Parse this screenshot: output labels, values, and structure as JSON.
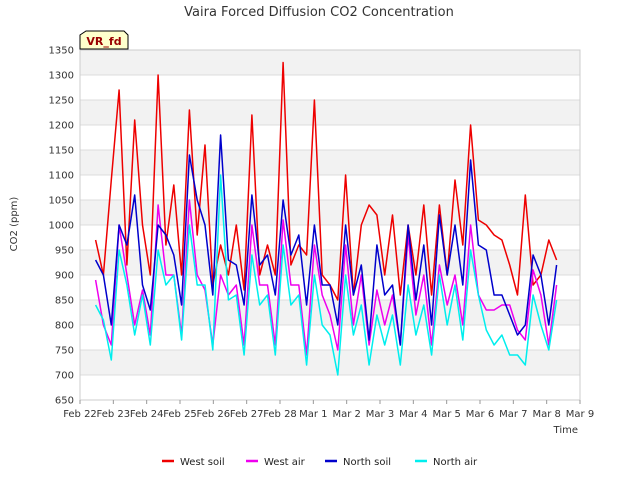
{
  "chart_data": {
    "type": "line",
    "title": "Vaira Forced Diffusion CO2 Concentration",
    "xlabel": "Time",
    "ylabel": "CO2 (ppm)",
    "ylim": [
      650,
      1350
    ],
    "yticks": [
      650,
      700,
      750,
      800,
      850,
      900,
      950,
      1000,
      1050,
      1100,
      1150,
      1200,
      1250,
      1300,
      1350
    ],
    "xlim": [
      "2024-02-22",
      "2024-03-09"
    ],
    "xticks": [
      "Feb 22",
      "Feb 23",
      "Feb 24",
      "Feb 25",
      "Feb 26",
      "Feb 27",
      "Feb 28",
      "Mar 1",
      "Mar 2",
      "Mar 3",
      "Mar 4",
      "Mar 5",
      "Mar 6",
      "Mar 7",
      "Mar 8",
      "Mar 9"
    ],
    "grid": true,
    "legend_position": "bottom",
    "tag_label": "VR_fd",
    "series": [
      {
        "name": "West soil",
        "color": "#ee0000",
        "x": [
          "2024-02-22 12:00",
          "2024-02-22 18:00",
          "2024-02-23 00:00",
          "2024-02-23 06:00",
          "2024-02-23 12:00",
          "2024-02-23 18:00",
          "2024-02-24 00:00",
          "2024-02-24 06:00",
          "2024-02-24 12:00",
          "2024-02-24 18:00",
          "2024-02-25 00:00",
          "2024-02-25 06:00",
          "2024-02-25 12:00",
          "2024-02-25 18:00",
          "2024-02-26 00:00",
          "2024-02-26 06:00",
          "2024-02-26 12:00",
          "2024-02-26 18:00",
          "2024-02-27 00:00",
          "2024-02-27 06:00",
          "2024-02-27 12:00",
          "2024-02-27 18:00",
          "2024-02-28 00:00",
          "2024-02-28 06:00",
          "2024-02-28 12:00",
          "2024-02-28 18:00",
          "2024-02-29 00:00",
          "2024-02-29 06:00",
          "2024-02-29 12:00",
          "2024-02-29 18:00",
          "2024-03-01 00:00",
          "2024-03-01 06:00",
          "2024-03-01 12:00",
          "2024-03-01 18:00",
          "2024-03-02 00:00",
          "2024-03-02 06:00",
          "2024-03-02 12:00",
          "2024-03-02 18:00",
          "2024-03-03 00:00",
          "2024-03-03 06:00",
          "2024-03-03 12:00",
          "2024-03-03 18:00",
          "2024-03-04 00:00",
          "2024-03-04 06:00",
          "2024-03-04 12:00",
          "2024-03-04 18:00",
          "2024-03-05 00:00",
          "2024-03-05 06:00",
          "2024-03-05 12:00",
          "2024-03-05 18:00",
          "2024-03-06 00:00",
          "2024-03-06 06:00",
          "2024-03-06 12:00",
          "2024-03-06 18:00",
          "2024-03-07 00:00",
          "2024-03-07 06:00",
          "2024-03-07 12:00",
          "2024-03-07 18:00",
          "2024-03-08 00:00",
          "2024-03-08 06:00"
        ],
        "y": [
          970,
          900,
          1090,
          1270,
          920,
          1210,
          1000,
          900,
          1300,
          960,
          1080,
          900,
          1230,
          980,
          1160,
          880,
          960,
          900,
          1000,
          870,
          1220,
          900,
          960,
          900,
          1325,
          920,
          960,
          940,
          1250,
          900,
          880,
          850,
          1100,
          860,
          1000,
          1040,
          1020,
          900,
          1020,
          860,
          1000,
          900,
          1040,
          860,
          1040,
          900,
          1090,
          960,
          1200,
          1010,
          1000,
          980,
          970,
          920,
          860,
          1060,
          880,
          900,
          970,
          930
        ]
      },
      {
        "name": "West air",
        "color": "#ee00ee",
        "x": [
          "2024-02-22 12:00",
          "2024-02-22 18:00",
          "2024-02-23 00:00",
          "2024-02-23 06:00",
          "2024-02-23 12:00",
          "2024-02-23 18:00",
          "2024-02-24 00:00",
          "2024-02-24 06:00",
          "2024-02-24 12:00",
          "2024-02-24 18:00",
          "2024-02-25 00:00",
          "2024-02-25 06:00",
          "2024-02-25 12:00",
          "2024-02-25 18:00",
          "2024-02-26 00:00",
          "2024-02-26 06:00",
          "2024-02-26 12:00",
          "2024-02-26 18:00",
          "2024-02-27 00:00",
          "2024-02-27 06:00",
          "2024-02-27 12:00",
          "2024-02-27 18:00",
          "2024-02-28 00:00",
          "2024-02-28 06:00",
          "2024-02-28 12:00",
          "2024-02-28 18:00",
          "2024-02-29 00:00",
          "2024-02-29 06:00",
          "2024-02-29 12:00",
          "2024-02-29 18:00",
          "2024-03-01 00:00",
          "2024-03-01 06:00",
          "2024-03-01 12:00",
          "2024-03-01 18:00",
          "2024-03-02 00:00",
          "2024-03-02 06:00",
          "2024-03-02 12:00",
          "2024-03-02 18:00",
          "2024-03-03 00:00",
          "2024-03-03 06:00",
          "2024-03-03 12:00",
          "2024-03-03 18:00",
          "2024-03-04 00:00",
          "2024-03-04 06:00",
          "2024-03-04 12:00",
          "2024-03-04 18:00",
          "2024-03-05 00:00",
          "2024-03-05 06:00",
          "2024-03-05 12:00",
          "2024-03-05 18:00",
          "2024-03-06 00:00",
          "2024-03-06 06:00",
          "2024-03-06 12:00",
          "2024-03-06 18:00",
          "2024-03-07 00:00",
          "2024-03-07 06:00",
          "2024-03-07 12:00",
          "2024-03-07 18:00",
          "2024-03-08 00:00",
          "2024-03-08 06:00"
        ],
        "y": [
          890,
          800,
          760,
          1000,
          900,
          800,
          870,
          780,
          1040,
          900,
          900,
          780,
          1050,
          900,
          870,
          760,
          900,
          860,
          880,
          760,
          1000,
          880,
          880,
          760,
          1010,
          880,
          880,
          740,
          960,
          860,
          820,
          750,
          960,
          800,
          900,
          760,
          870,
          800,
          860,
          760,
          980,
          820,
          900,
          760,
          920,
          840,
          900,
          800,
          1000,
          860,
          830,
          830,
          840,
          840,
          790,
          770,
          910,
          860,
          760,
          880
        ]
      },
      {
        "name": "North soil",
        "color": "#0000cc",
        "x": [
          "2024-02-22 12:00",
          "2024-02-22 18:00",
          "2024-02-23 00:00",
          "2024-02-23 06:00",
          "2024-02-23 12:00",
          "2024-02-23 18:00",
          "2024-02-24 00:00",
          "2024-02-24 06:00",
          "2024-02-24 12:00",
          "2024-02-24 18:00",
          "2024-02-25 00:00",
          "2024-02-25 06:00",
          "2024-02-25 12:00",
          "2024-02-25 18:00",
          "2024-02-26 00:00",
          "2024-02-26 06:00",
          "2024-02-26 12:00",
          "2024-02-26 18:00",
          "2024-02-27 00:00",
          "2024-02-27 06:00",
          "2024-02-27 12:00",
          "2024-02-27 18:00",
          "2024-02-28 00:00",
          "2024-02-28 06:00",
          "2024-02-28 12:00",
          "2024-02-28 18:00",
          "2024-02-29 00:00",
          "2024-02-29 06:00",
          "2024-02-29 12:00",
          "2024-02-29 18:00",
          "2024-03-01 00:00",
          "2024-03-01 06:00",
          "2024-03-01 12:00",
          "2024-03-01 18:00",
          "2024-03-02 00:00",
          "2024-03-02 06:00",
          "2024-03-02 12:00",
          "2024-03-02 18:00",
          "2024-03-03 00:00",
          "2024-03-03 06:00",
          "2024-03-03 12:00",
          "2024-03-03 18:00",
          "2024-03-04 00:00",
          "2024-03-04 06:00",
          "2024-03-04 12:00",
          "2024-03-04 18:00",
          "2024-03-05 00:00",
          "2024-03-05 06:00",
          "2024-03-05 12:00",
          "2024-03-05 18:00",
          "2024-03-06 00:00",
          "2024-03-06 06:00",
          "2024-03-06 12:00",
          "2024-03-06 18:00",
          "2024-03-07 00:00",
          "2024-03-07 06:00",
          "2024-03-07 12:00",
          "2024-03-07 18:00",
          "2024-03-08 00:00",
          "2024-03-08 06:00"
        ],
        "y": [
          930,
          900,
          800,
          1000,
          960,
          1060,
          880,
          830,
          1000,
          980,
          940,
          840,
          1140,
          1050,
          1000,
          860,
          1180,
          930,
          920,
          840,
          1060,
          920,
          940,
          860,
          1050,
          940,
          980,
          840,
          1000,
          880,
          880,
          800,
          1000,
          860,
          920,
          770,
          960,
          860,
          880,
          760,
          1000,
          850,
          960,
          800,
          1020,
          900,
          1000,
          880,
          1130,
          960,
          950,
          860,
          860,
          820,
          780,
          800,
          940,
          900,
          800,
          920
        ]
      },
      {
        "name": "North air",
        "color": "#00eeee",
        "x": [
          "2024-02-22 12:00",
          "2024-02-22 18:00",
          "2024-02-23 00:00",
          "2024-02-23 06:00",
          "2024-02-23 12:00",
          "2024-02-23 18:00",
          "2024-02-24 00:00",
          "2024-02-24 06:00",
          "2024-02-24 12:00",
          "2024-02-24 18:00",
          "2024-02-25 00:00",
          "2024-02-25 06:00",
          "2024-02-25 12:00",
          "2024-02-25 18:00",
          "2024-02-26 00:00",
          "2024-02-26 06:00",
          "2024-02-26 12:00",
          "2024-02-26 18:00",
          "2024-02-27 00:00",
          "2024-02-27 06:00",
          "2024-02-27 12:00",
          "2024-02-27 18:00",
          "2024-02-28 00:00",
          "2024-02-28 06:00",
          "2024-02-28 12:00",
          "2024-02-28 18:00",
          "2024-02-29 00:00",
          "2024-02-29 06:00",
          "2024-02-29 12:00",
          "2024-02-29 18:00",
          "2024-03-01 00:00",
          "2024-03-01 06:00",
          "2024-03-01 12:00",
          "2024-03-01 18:00",
          "2024-03-02 00:00",
          "2024-03-02 06:00",
          "2024-03-02 12:00",
          "2024-03-02 18:00",
          "2024-03-03 00:00",
          "2024-03-03 06:00",
          "2024-03-03 12:00",
          "2024-03-03 18:00",
          "2024-03-04 00:00",
          "2024-03-04 06:00",
          "2024-03-04 12:00",
          "2024-03-04 18:00",
          "2024-03-05 00:00",
          "2024-03-05 06:00",
          "2024-03-05 12:00",
          "2024-03-05 18:00",
          "2024-03-06 00:00",
          "2024-03-06 06:00",
          "2024-03-06 12:00",
          "2024-03-06 18:00",
          "2024-03-07 00:00",
          "2024-03-07 06:00",
          "2024-03-07 12:00",
          "2024-03-07 18:00",
          "2024-03-08 00:00",
          "2024-03-08 06:00"
        ],
        "y": [
          840,
          810,
          730,
          950,
          880,
          780,
          860,
          760,
          950,
          880,
          900,
          770,
          1000,
          880,
          880,
          750,
          1100,
          850,
          860,
          740,
          940,
          840,
          860,
          740,
          960,
          840,
          860,
          720,
          900,
          800,
          780,
          700,
          900,
          780,
          840,
          720,
          820,
          760,
          820,
          720,
          880,
          780,
          840,
          740,
          900,
          800,
          880,
          770,
          950,
          860,
          790,
          760,
          780,
          740,
          740,
          720,
          860,
          800,
          750,
          850
        ]
      }
    ]
  }
}
